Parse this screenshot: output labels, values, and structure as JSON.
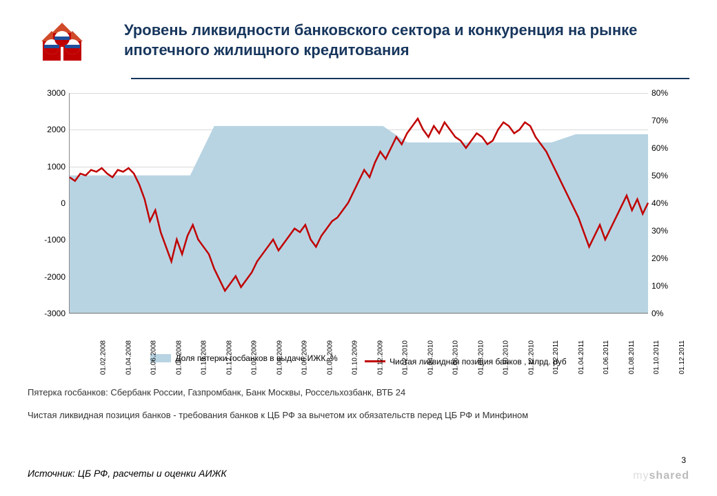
{
  "title": "Уровень ликвидности банковского сектора и конкуренция на рынке ипотечного жилищного кредитования",
  "chart": {
    "type": "combo-area-line-dual-axis",
    "background_color": "#ffffff",
    "grid_color": "#d9d9d9",
    "axis_color": "#888888",
    "left_axis": {
      "min": -3000,
      "max": 3000,
      "step": 1000,
      "ticks": [
        "3000",
        "2000",
        "1000",
        "0",
        "-1000",
        "-2000",
        "-3000"
      ],
      "fontsize": 12
    },
    "right_axis": {
      "min": 0,
      "max": 80,
      "step": 10,
      "ticks": [
        "80%",
        "70%",
        "60%",
        "50%",
        "40%",
        "30%",
        "20%",
        "10%",
        "0%"
      ],
      "fontsize": 12
    },
    "x_labels": [
      "01.02.2008",
      "01.04.2008",
      "01.06.2008",
      "01.08.2008",
      "01.10.2008",
      "01.12.2008",
      "01.02.2009",
      "01.04.2009",
      "01.06.2009",
      "01.08.2009",
      "01.10.2009",
      "01.12.2009",
      "01.02.2010",
      "01.04.2010",
      "01.06.2010",
      "01.08.2010",
      "01.10.2010",
      "01.12.2010",
      "01.02.2011",
      "01.04.2011",
      "01.06.2011",
      "01.08.2011",
      "01.10.2011",
      "01.12.2011"
    ],
    "x_label_fontsize": 10,
    "series_area": {
      "name": "Доля пятерки госбанков в выдаче ИЖК, %",
      "color": "#b8d4e3",
      "axis": "right",
      "values": [
        50,
        50,
        50,
        50,
        50,
        68,
        68,
        68,
        68,
        68,
        68,
        68,
        68,
        62,
        62,
        62,
        62,
        62,
        62,
        62,
        65,
        65,
        65,
        65
      ]
    },
    "series_line": {
      "name": "Чистая ликвидная позиция банков , млрд. руб",
      "color": "#c00000",
      "line_width": 2.5,
      "axis": "left",
      "values": [
        700,
        600,
        800,
        750,
        900,
        850,
        950,
        800,
        700,
        900,
        850,
        950,
        800,
        500,
        100,
        -500,
        -200,
        -800,
        -1200,
        -1600,
        -1000,
        -1400,
        -900,
        -600,
        -1000,
        -1200,
        -1400,
        -1800,
        -2100,
        -2400,
        -2200,
        -2000,
        -2300,
        -2100,
        -1900,
        -1600,
        -1400,
        -1200,
        -1000,
        -1300,
        -1100,
        -900,
        -700,
        -800,
        -600,
        -1000,
        -1200,
        -900,
        -700,
        -500,
        -400,
        -200,
        0,
        300,
        600,
        900,
        700,
        1100,
        1400,
        1200,
        1500,
        1800,
        1600,
        1900,
        2100,
        2300,
        2000,
        1800,
        2100,
        1900,
        2200,
        2000,
        1800,
        1700,
        1500,
        1700,
        1900,
        1800,
        1600,
        1700,
        2000,
        2200,
        2100,
        1900,
        2000,
        2200,
        2100,
        1800,
        1600,
        1400,
        1100,
        800,
        500,
        200,
        -100,
        -400,
        -800,
        -1200,
        -900,
        -600,
        -1000,
        -700,
        -400,
        -100,
        200,
        -200,
        100,
        -300,
        0
      ]
    }
  },
  "legend": {
    "items": [
      {
        "type": "area",
        "color": "#b8d4e3",
        "label": "Доля пятерки госбанков в выдаче ИЖК, %"
      },
      {
        "type": "line",
        "color": "#c00000",
        "label": "Чистая ликвидная позиция банков , млрд. руб"
      }
    ],
    "fontsize": 12
  },
  "footnote1": "Пятерка госбанков:  Сбербанк России, Газпромбанк, Банк Москвы, Россельхозбанк,  ВТБ 24",
  "footnote2": "Чистая ликвидная позиция  банков  -  требования банков к ЦБ РФ за вычетом их обязательств перед ЦБ РФ и Минфином",
  "source": "Источник: ЦБ РФ, расчеты и оценки АИЖК",
  "page_number": "3",
  "watermark_plain": "my",
  "watermark_bold": "shared",
  "logo_colors": {
    "roof": "#d04a2a",
    "wall": "#c00000",
    "blue": "#1f4e9b",
    "white": "#ffffff"
  }
}
